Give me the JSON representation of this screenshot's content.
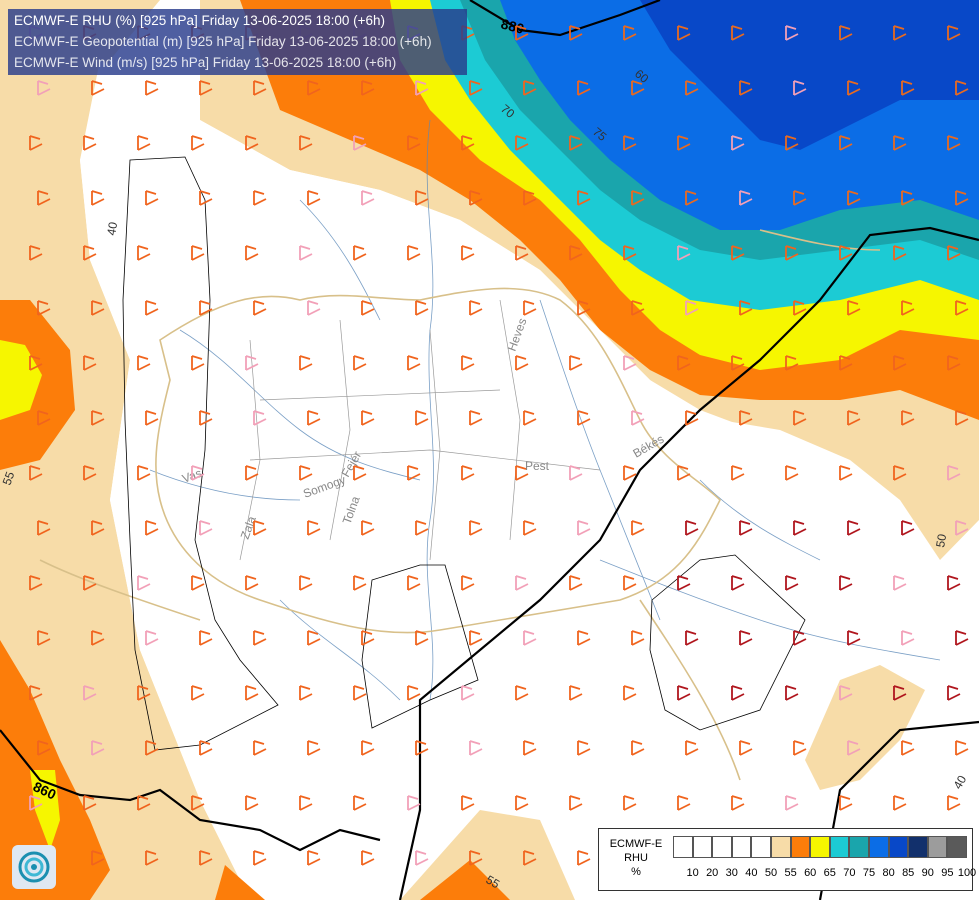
{
  "header": {
    "line1": "ECMWF-E RHU (%) [925 hPa] Friday 13-06-2025 18:00 (+6h)",
    "line2": "ECMWF-E Geopotential (m) [925 hPa] Friday 13-06-2025 18:00 (+6h)",
    "line3": "ECMWF-E Wind (m/s) [925 hPa] Friday 13-06-2025 18:00 (+6h)"
  },
  "contour_labels": {
    "geo_880": "880",
    "geo_860": "860",
    "rhu_40a": "40",
    "rhu_40b": "40",
    "rhu_50": "50",
    "rhu_55a": "55",
    "rhu_55b": "55",
    "rhu_60": "60",
    "rhu_70": "70",
    "rhu_75": "75"
  },
  "place_labels": [
    "Vas",
    "Zala",
    "Somogy",
    "Fejér",
    "Tolna",
    "Pest",
    "Heves",
    "Békés"
  ],
  "legend": {
    "title_line1": "ECMWF-E",
    "title_line2": "RHU",
    "title_line3": "%",
    "ticks": [
      "10",
      "20",
      "30",
      "40",
      "50",
      "55",
      "60",
      "65",
      "70",
      "75",
      "80",
      "85",
      "90",
      "95",
      "100"
    ],
    "colors": [
      "#ffffff",
      "#ffffff",
      "#ffffff",
      "#ffffff",
      "#ffffff",
      "#f7dca8",
      "#fc7d0a",
      "#f6f600",
      "#1ccbd4",
      "#1aa5ac",
      "#0b6de6",
      "#0848c8",
      "#12306c",
      "#9c9c9c",
      "#5a5a5a"
    ]
  },
  "colors": {
    "tan": "#f7dca8",
    "orange": "#fc7d0a",
    "yellow": "#f6f600",
    "cyan": "#1ccbd4",
    "teal": "#1aa5ac",
    "blue": "#0b6de6",
    "darkblue": "#0848c8"
  }
}
